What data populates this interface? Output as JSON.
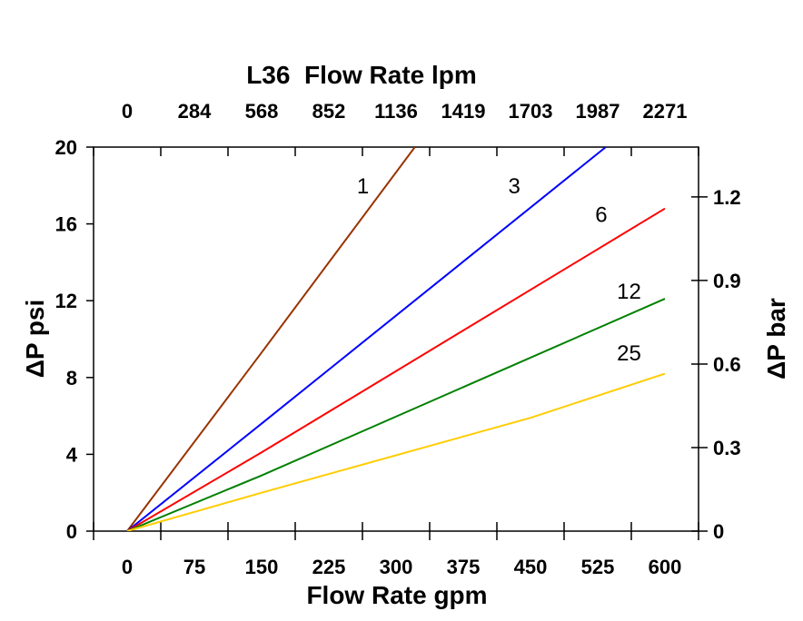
{
  "chart_data": {
    "type": "line",
    "title": "L36  Flow Rate lpm",
    "xlabel": "Flow Rate gpm",
    "ylabel": "ΔP psi",
    "y2label": "ΔP bar",
    "xlim": [
      -37.5,
      637.5
    ],
    "ylim": [
      0,
      20
    ],
    "y2lim": [
      0,
      1.379
    ],
    "grid": false,
    "x_ticks": [
      "0",
      "75",
      "150",
      "225",
      "300",
      "375",
      "450",
      "525",
      "600"
    ],
    "x_tick_values": [
      0,
      75,
      150,
      225,
      300,
      375,
      450,
      525,
      600
    ],
    "x2_ticks": [
      "0",
      "284",
      "568",
      "852",
      "1136",
      "1419",
      "1703",
      "1987",
      "2271"
    ],
    "y_ticks": [
      "0",
      "4",
      "8",
      "12",
      "16",
      "20"
    ],
    "y_tick_values": [
      0,
      4,
      8,
      12,
      16,
      20
    ],
    "y2_ticks": [
      "0",
      "0.3",
      "0.6",
      "0.9",
      "1.2"
    ],
    "y2_tick_values": [
      0,
      0.3,
      0.6,
      0.9,
      1.2
    ],
    "series": [
      {
        "name": "1",
        "color": "#993300",
        "points": [
          [
            0,
            0
          ],
          [
            150,
            9.3
          ],
          [
            321,
            20
          ]
        ],
        "label_at": [
          263,
          17.6
        ]
      },
      {
        "name": "3",
        "color": "#0000ff",
        "points": [
          [
            0,
            0
          ],
          [
            150,
            5.6
          ],
          [
            534,
            20
          ]
        ],
        "label_at": [
          432,
          17.6
        ]
      },
      {
        "name": "6",
        "color": "#ff0000",
        "points": [
          [
            0,
            0
          ],
          [
            150,
            4.1
          ],
          [
            600,
            16.8
          ]
        ],
        "label_at": [
          529,
          16.1
        ]
      },
      {
        "name": "12",
        "color": "#008000",
        "points": [
          [
            0,
            0
          ],
          [
            150,
            2.9
          ],
          [
            600,
            12.1
          ]
        ],
        "label_at": [
          560,
          12.1
        ]
      },
      {
        "name": "25",
        "color": "#ffcc00",
        "points": [
          [
            0,
            0
          ],
          [
            150,
            2.0
          ],
          [
            450,
            5.9
          ],
          [
            600,
            8.2
          ]
        ],
        "label_at": [
          560,
          8.9
        ]
      }
    ]
  }
}
